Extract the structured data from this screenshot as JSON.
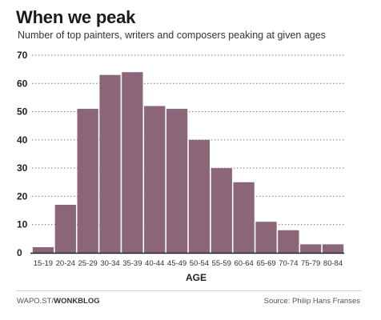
{
  "header": {
    "title": "When we peak",
    "subtitle": "Number of top painters, writers and composers peaking at given ages"
  },
  "footer": {
    "credit_prefix": "WAPO.ST/",
    "credit_bold": "WONKBLOG",
    "source": "Source: Philip Hans Franses"
  },
  "colors": {
    "bar": "#8b6679",
    "grid": "#7a7a7a",
    "axis": "#222222"
  },
  "chart_data": {
    "type": "bar",
    "title": "When we peak",
    "subtitle": "Number of top painters, writers and composers peaking at given ages",
    "xlabel": "AGE",
    "ylabel": "",
    "categories": [
      "15-19",
      "20-24",
      "25-29",
      "30-34",
      "35-39",
      "40-44",
      "45-49",
      "50-54",
      "55-59",
      "60-64",
      "65-69",
      "70-74",
      "75-79",
      "80-84"
    ],
    "values": [
      2,
      17,
      51,
      63,
      64,
      52,
      51,
      40,
      30,
      25,
      11,
      8,
      3,
      3
    ],
    "ylim": [
      0,
      70
    ],
    "yticks": [
      0,
      10,
      20,
      30,
      40,
      50,
      60,
      70
    ],
    "grid": "horizontal dotted"
  }
}
